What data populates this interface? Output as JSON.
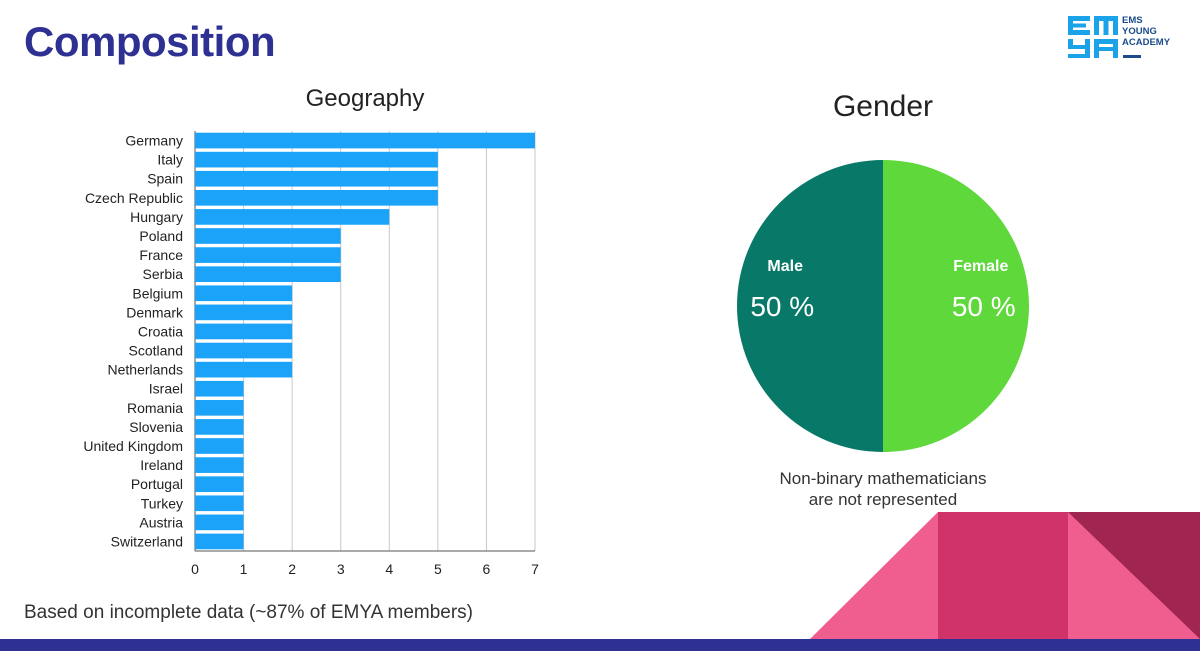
{
  "slide": {
    "title": "Composition",
    "footnote": "Based on incomplete data (~87% of EMYA members)",
    "brand_color": "#2e3192"
  },
  "logo": {
    "letters": [
      "E",
      "M",
      "Y",
      "A"
    ],
    "lines": [
      "EMS",
      "YOUNG",
      "ACADEMY"
    ],
    "color": "#1aa3e8"
  },
  "chart_data": [
    {
      "type": "bar",
      "orientation": "horizontal",
      "title": "Geography",
      "categories": [
        "Germany",
        "Italy",
        "Spain",
        "Czech Republic",
        "Hungary",
        "Poland",
        "France",
        "Serbia",
        "Belgium",
        "Denmark",
        "Croatia",
        "Scotland",
        "Netherlands",
        "Israel",
        "Romania",
        "Slovenia",
        "United Kingdom",
        "Ireland",
        "Portugal",
        "Turkey",
        "Austria",
        "Switzerland"
      ],
      "values": [
        7,
        5,
        5,
        5,
        4,
        3,
        3,
        3,
        2,
        2,
        2,
        2,
        2,
        1,
        1,
        1,
        1,
        1,
        1,
        1,
        1,
        1
      ],
      "xlim": [
        0,
        7
      ],
      "xticks": [
        0,
        1,
        2,
        3,
        4,
        5,
        6,
        7
      ],
      "grid": true,
      "color": "#1aa3f8"
    },
    {
      "type": "pie",
      "title": "Gender",
      "slices": [
        {
          "label": "Male",
          "value": 50,
          "value_label": "50 %",
          "color": "#087868"
        },
        {
          "label": "Female",
          "value": 50,
          "value_label": "50 %",
          "color": "#5fd83c"
        }
      ],
      "note_lines": [
        "Non-binary mathematicians",
        "are not represented"
      ]
    }
  ]
}
